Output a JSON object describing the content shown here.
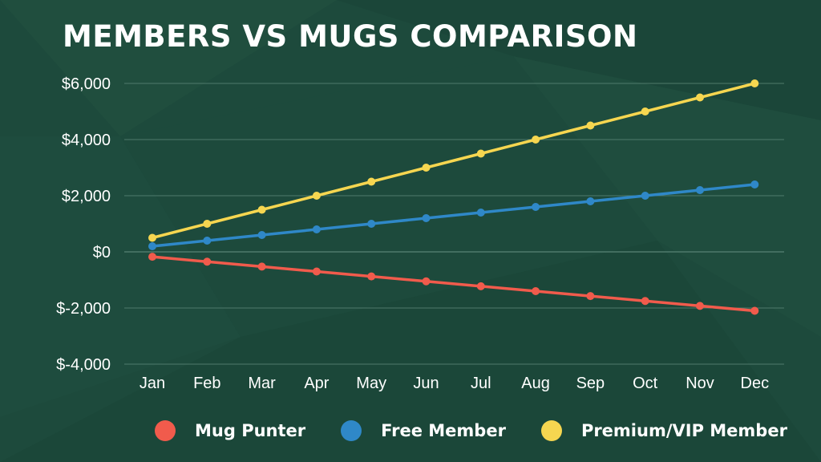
{
  "title": "MEMBERS VS MUGS COMPARISON",
  "colors": {
    "background": "#1d4a3c",
    "grid": "#4f7a6c",
    "text": "#ffffff"
  },
  "chart_data": {
    "type": "line",
    "title": "MEMBERS VS MUGS COMPARISON",
    "x": [
      "Jan",
      "Feb",
      "Mar",
      "Apr",
      "May",
      "Jun",
      "Jul",
      "Aug",
      "Sep",
      "Oct",
      "Nov",
      "Dec"
    ],
    "ylim": [
      -4000,
      6000
    ],
    "yticks": [
      6000,
      4000,
      2000,
      0,
      -2000,
      -4000
    ],
    "ytick_labels": [
      "$6,000",
      "$4,000",
      "$2,000",
      "$0",
      "$-2,000",
      "$-4,000"
    ],
    "grid": true,
    "legend_position": "bottom",
    "series": [
      {
        "name": "Mug Punter",
        "color": "#f15b4c",
        "values": [
          -175,
          -350,
          -525,
          -700,
          -875,
          -1050,
          -1225,
          -1400,
          -1575,
          -1750,
          -1925,
          -2100
        ]
      },
      {
        "name": "Free Member",
        "color": "#2f88c8",
        "values": [
          200,
          400,
          600,
          800,
          1000,
          1200,
          1400,
          1600,
          1800,
          2000,
          2200,
          2400
        ]
      },
      {
        "name": "Premium/VIP Member",
        "color": "#f6d650",
        "values": [
          500,
          1000,
          1500,
          2000,
          2500,
          3000,
          3500,
          4000,
          4500,
          5000,
          5500,
          6000
        ]
      }
    ]
  }
}
